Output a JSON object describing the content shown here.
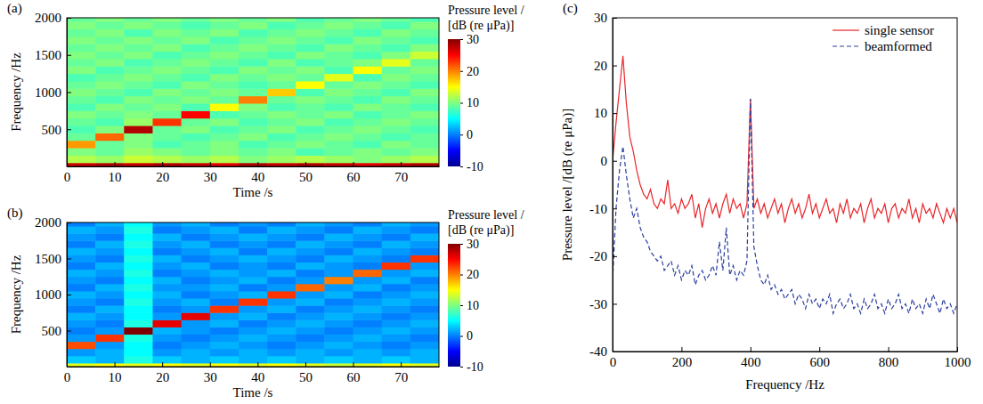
{
  "chart_data": [
    {
      "type": "heatmap",
      "title": "(a)",
      "x_label": "Time /s",
      "y_label": "Frequency /Hz",
      "xlim": [
        0,
        78
      ],
      "xticks": [
        0,
        10,
        20,
        30,
        40,
        50,
        60,
        70
      ],
      "ylim": [
        0,
        2000
      ],
      "yticks": [
        500,
        1000,
        1500,
        2000
      ],
      "x_bins": [
        0,
        6,
        12,
        18,
        24,
        30,
        36,
        42,
        48,
        54,
        60,
        66,
        72,
        78
      ],
      "y_bins": [
        0,
        50,
        150,
        250,
        350,
        450,
        550,
        650,
        750,
        850,
        950,
        1050,
        1150,
        1250,
        1350,
        1450,
        1550,
        1650,
        1750,
        1850,
        1950,
        2000
      ],
      "z": [
        [
          27,
          28,
          27,
          28,
          27,
          26,
          28,
          27,
          28,
          27,
          26,
          27,
          28
        ],
        [
          12,
          11,
          13,
          12,
          11,
          12,
          10,
          11,
          12,
          11,
          10,
          11,
          12
        ],
        [
          10,
          9,
          11,
          10,
          9,
          10,
          9,
          10,
          8,
          9,
          10,
          9,
          10
        ],
        [
          19,
          9,
          10,
          8,
          9,
          10,
          8,
          9,
          10,
          9,
          8,
          10,
          9
        ],
        [
          9,
          21,
          10,
          9,
          8,
          9,
          10,
          8,
          9,
          10,
          9,
          8,
          9
        ],
        [
          8,
          10,
          28,
          9,
          10,
          8,
          9,
          10,
          8,
          9,
          10,
          9,
          8
        ],
        [
          9,
          8,
          11,
          23,
          9,
          10,
          8,
          9,
          10,
          8,
          9,
          10,
          9
        ],
        [
          10,
          9,
          10,
          9,
          25,
          8,
          9,
          10,
          9,
          10,
          8,
          9,
          10
        ],
        [
          8,
          10,
          9,
          10,
          8,
          15,
          10,
          8,
          9,
          8,
          10,
          9,
          8
        ],
        [
          9,
          8,
          10,
          9,
          10,
          9,
          20,
          9,
          10,
          9,
          8,
          10,
          9
        ],
        [
          10,
          9,
          8,
          10,
          9,
          10,
          9,
          17,
          8,
          10,
          9,
          8,
          10
        ],
        [
          9,
          10,
          9,
          8,
          10,
          9,
          8,
          9,
          15,
          9,
          10,
          9,
          8
        ],
        [
          8,
          9,
          10,
          9,
          8,
          10,
          9,
          10,
          9,
          14,
          8,
          10,
          9
        ],
        [
          10,
          8,
          9,
          10,
          9,
          8,
          10,
          9,
          10,
          8,
          15,
          9,
          10
        ],
        [
          9,
          10,
          8,
          9,
          10,
          9,
          8,
          10,
          8,
          9,
          10,
          14,
          9
        ],
        [
          10,
          9,
          10,
          8,
          9,
          10,
          9,
          8,
          10,
          9,
          8,
          10,
          13
        ],
        [
          9,
          10,
          9,
          10,
          8,
          9,
          10,
          9,
          8,
          10,
          9,
          8,
          10
        ],
        [
          10,
          9,
          10,
          9,
          10,
          8,
          9,
          10,
          9,
          8,
          10,
          9,
          8
        ],
        [
          9,
          10,
          8,
          10,
          9,
          10,
          8,
          9,
          10,
          9,
          8,
          10,
          9
        ],
        [
          10,
          9,
          10,
          9,
          8,
          9,
          10,
          8,
          9,
          10,
          9,
          8,
          10
        ],
        [
          9,
          10,
          9,
          10,
          9,
          10,
          9,
          10,
          8,
          9,
          10,
          9,
          8
        ]
      ],
      "colorbar_title": [
        "Pressure level /",
        "[dB (re μPa)]"
      ],
      "colorbar_range": [
        -10,
        30
      ],
      "colorbar_ticks": [
        -10,
        0,
        10,
        20,
        30
      ]
    },
    {
      "type": "heatmap",
      "title": "(b)",
      "x_label": "Time /s",
      "y_label": "Frequency /Hz",
      "xlim": [
        0,
        78
      ],
      "xticks": [
        0,
        10,
        20,
        30,
        40,
        50,
        60,
        70
      ],
      "ylim": [
        0,
        2000
      ],
      "yticks": [
        500,
        1000,
        1500,
        2000
      ],
      "x_bins": [
        0,
        6,
        12,
        18,
        24,
        30,
        36,
        42,
        48,
        54,
        60,
        66,
        72,
        78
      ],
      "y_bins": [
        0,
        50,
        150,
        250,
        350,
        450,
        550,
        650,
        750,
        850,
        950,
        1050,
        1150,
        1250,
        1350,
        1450,
        1550,
        1650,
        1750,
        1850,
        1950,
        2000
      ],
      "z": [
        [
          14,
          15,
          14,
          15,
          14,
          15,
          14,
          15,
          14,
          13,
          14,
          15,
          14
        ],
        [
          3,
          2,
          6,
          3,
          2,
          3,
          2,
          3,
          2,
          3,
          2,
          3,
          2
        ],
        [
          1,
          2,
          5,
          1,
          2,
          1,
          2,
          1,
          2,
          1,
          2,
          1,
          2
        ],
        [
          22,
          1,
          5,
          0,
          1,
          2,
          1,
          0,
          1,
          2,
          1,
          0,
          1
        ],
        [
          1,
          23,
          6,
          1,
          0,
          1,
          2,
          1,
          0,
          1,
          2,
          1,
          0
        ],
        [
          0,
          1,
          30,
          2,
          1,
          0,
          1,
          2,
          1,
          0,
          1,
          2,
          1
        ],
        [
          1,
          0,
          6,
          26,
          1,
          2,
          0,
          1,
          2,
          1,
          0,
          1,
          2
        ],
        [
          2,
          1,
          5,
          1,
          26,
          1,
          2,
          0,
          1,
          2,
          1,
          0,
          1
        ],
        [
          0,
          2,
          5,
          0,
          1,
          23,
          1,
          2,
          0,
          1,
          2,
          1,
          0
        ],
        [
          1,
          0,
          6,
          1,
          2,
          0,
          23,
          1,
          2,
          0,
          1,
          2,
          1
        ],
        [
          2,
          1,
          5,
          2,
          0,
          1,
          2,
          23,
          1,
          2,
          0,
          1,
          2
        ],
        [
          0,
          2,
          6,
          1,
          1,
          2,
          0,
          1,
          21,
          1,
          2,
          0,
          1
        ],
        [
          1,
          0,
          5,
          2,
          0,
          1,
          2,
          0,
          1,
          20,
          1,
          2,
          0
        ],
        [
          2,
          1,
          6,
          0,
          1,
          2,
          1,
          2,
          0,
          1,
          21,
          1,
          2
        ],
        [
          0,
          2,
          5,
          1,
          2,
          0,
          1,
          0,
          2,
          1,
          0,
          23,
          1
        ],
        [
          1,
          0,
          6,
          2,
          0,
          1,
          2,
          1,
          0,
          2,
          1,
          0,
          23
        ],
        [
          2,
          1,
          5,
          0,
          1,
          2,
          0,
          2,
          1,
          0,
          2,
          1,
          0
        ],
        [
          0,
          2,
          6,
          1,
          2,
          0,
          1,
          0,
          2,
          1,
          0,
          2,
          1
        ],
        [
          1,
          0,
          5,
          2,
          0,
          1,
          2,
          1,
          0,
          2,
          1,
          0,
          2
        ],
        [
          2,
          1,
          6,
          0,
          1,
          2,
          0,
          2,
          1,
          0,
          2,
          1,
          0
        ],
        [
          0,
          2,
          5,
          1,
          2,
          0,
          1,
          0,
          2,
          1,
          0,
          2,
          1
        ]
      ],
      "colorbar_title": [
        "Pressure level /",
        "[dB (re μPa)]"
      ],
      "colorbar_range": [
        -10,
        30
      ],
      "colorbar_ticks": [
        -10,
        0,
        10,
        20,
        30
      ]
    },
    {
      "type": "line",
      "title": "(c)",
      "x_label": "Frequency /Hz",
      "y_label": "Pressure level /[dB (re μPa)]",
      "xlim": [
        0,
        1000
      ],
      "xticks": [
        0,
        200,
        400,
        600,
        800,
        1000
      ],
      "ylim": [
        -40,
        30
      ],
      "yticks": [
        -40,
        -30,
        -20,
        -10,
        0,
        10,
        20,
        30
      ],
      "legend": "top-right",
      "x": [
        0,
        10,
        20,
        30,
        40,
        50,
        60,
        70,
        80,
        90,
        100,
        110,
        120,
        130,
        140,
        150,
        160,
        170,
        180,
        190,
        200,
        210,
        220,
        230,
        240,
        250,
        260,
        270,
        280,
        290,
        300,
        310,
        320,
        330,
        340,
        350,
        360,
        370,
        380,
        390,
        400,
        410,
        420,
        430,
        440,
        450,
        460,
        470,
        480,
        490,
        500,
        510,
        520,
        530,
        540,
        550,
        560,
        570,
        580,
        590,
        600,
        610,
        620,
        630,
        640,
        650,
        660,
        670,
        680,
        690,
        700,
        710,
        720,
        730,
        740,
        750,
        760,
        770,
        780,
        790,
        800,
        810,
        820,
        830,
        840,
        850,
        860,
        870,
        880,
        890,
        900,
        910,
        920,
        930,
        940,
        950,
        960,
        970,
        980,
        990,
        1000
      ],
      "series": [
        {
          "name": "single sensor",
          "color": "#e8262b",
          "line_style": "solid",
          "values": [
            0,
            8,
            15,
            22,
            12,
            5,
            2,
            -2,
            -5,
            -7,
            -8,
            -6,
            -9,
            -10,
            -8,
            -9,
            -4,
            -10,
            -9,
            -11,
            -8,
            -10,
            -9,
            -7,
            -12,
            -9,
            -14,
            -10,
            -8,
            -11,
            -9,
            -12,
            -9,
            -7,
            -11,
            -8,
            -10,
            -9,
            -12,
            -9,
            13,
            -10,
            -8,
            -11,
            -9,
            -12,
            -10,
            -8,
            -11,
            -9,
            -13,
            -10,
            -8,
            -11,
            -9,
            -12,
            -10,
            -7,
            -11,
            -9,
            -12,
            -10,
            -8,
            -11,
            -10,
            -13,
            -9,
            -11,
            -8,
            -12,
            -10,
            -11,
            -9,
            -13,
            -10,
            -8,
            -12,
            -10,
            -11,
            -9,
            -13,
            -10,
            -9,
            -12,
            -10,
            -11,
            -8,
            -12,
            -10,
            -13,
            -9,
            -11,
            -10,
            -12,
            -9,
            -11,
            -13,
            -10,
            -12,
            -10,
            -13
          ]
        },
        {
          "name": "beamformed",
          "color": "#2c3e9e",
          "line_style": "dashed",
          "values": [
            -25,
            -10,
            -2,
            3,
            -3,
            -8,
            -12,
            -10,
            -14,
            -16,
            -17,
            -19,
            -20,
            -21,
            -20,
            -23,
            -22,
            -21,
            -24,
            -22,
            -25,
            -23,
            -24,
            -22,
            -26,
            -24,
            -23,
            -25,
            -24,
            -22,
            -24,
            -17,
            -23,
            -14,
            -24,
            -22,
            -25,
            -23,
            -24,
            -21,
            13,
            -18,
            -22,
            -25,
            -26,
            -24,
            -27,
            -26,
            -28,
            -27,
            -29,
            -28,
            -27,
            -30,
            -28,
            -29,
            -31,
            -28,
            -30,
            -29,
            -31,
            -29,
            -30,
            -28,
            -32,
            -30,
            -29,
            -31,
            -30,
            -28,
            -31,
            -30,
            -32,
            -29,
            -31,
            -30,
            -28,
            -31,
            -30,
            -32,
            -29,
            -31,
            -30,
            -28,
            -31,
            -30,
            -32,
            -29,
            -31,
            -30,
            -32,
            -29,
            -31,
            -28,
            -30,
            -32,
            -29,
            -31,
            -30,
            -32,
            -30
          ]
        }
      ]
    }
  ]
}
